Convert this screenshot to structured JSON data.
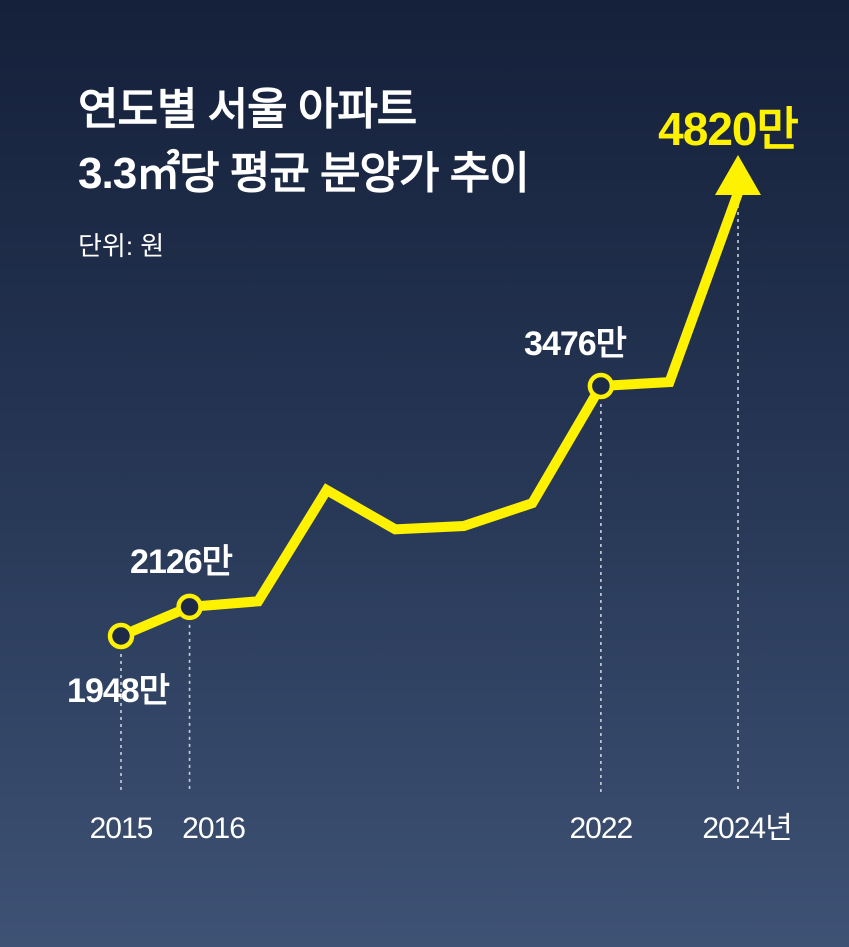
{
  "header": {
    "title_line1": "연도별 서울 아파트",
    "title_line2": "3.3㎡당 평균 분양가 추이",
    "unit": "단위: 원"
  },
  "colors": {
    "line": "#fff200",
    "marker_fill": "#1d2b47",
    "guide": "#c9d0dc",
    "text": "#ffffff",
    "highlight": "#fff200"
  },
  "chart_data": {
    "type": "line",
    "title": "연도별 서울 아파트 3.3㎡당 평균 분양가 추이",
    "unit": "단위: 원",
    "x": [
      2015,
      2016,
      2017,
      2018,
      2019,
      2020,
      2021,
      2022,
      2023,
      2024
    ],
    "y": [
      1948,
      2126,
      2160,
      2840,
      2600,
      2620,
      2760,
      3476,
      3500,
      4820
    ],
    "y_units": "만원",
    "x_tick_labels": [
      {
        "x": 2015,
        "text": "2015"
      },
      {
        "x": 2016,
        "text": "2016"
      },
      {
        "x": 2022,
        "text": "2022"
      },
      {
        "x": 2024,
        "text": "2024년"
      }
    ],
    "data_labels": [
      {
        "x": 2015,
        "text": "1948만",
        "emphasis": false
      },
      {
        "x": 2016,
        "text": "2126만",
        "emphasis": false
      },
      {
        "x": 2022,
        "text": "3476만",
        "emphasis": false
      },
      {
        "x": 2024,
        "text": "4820만",
        "emphasis": true
      }
    ],
    "markers_at": [
      2015,
      2016,
      2022
    ],
    "arrow_end": true,
    "grid": false,
    "legend": "none"
  }
}
